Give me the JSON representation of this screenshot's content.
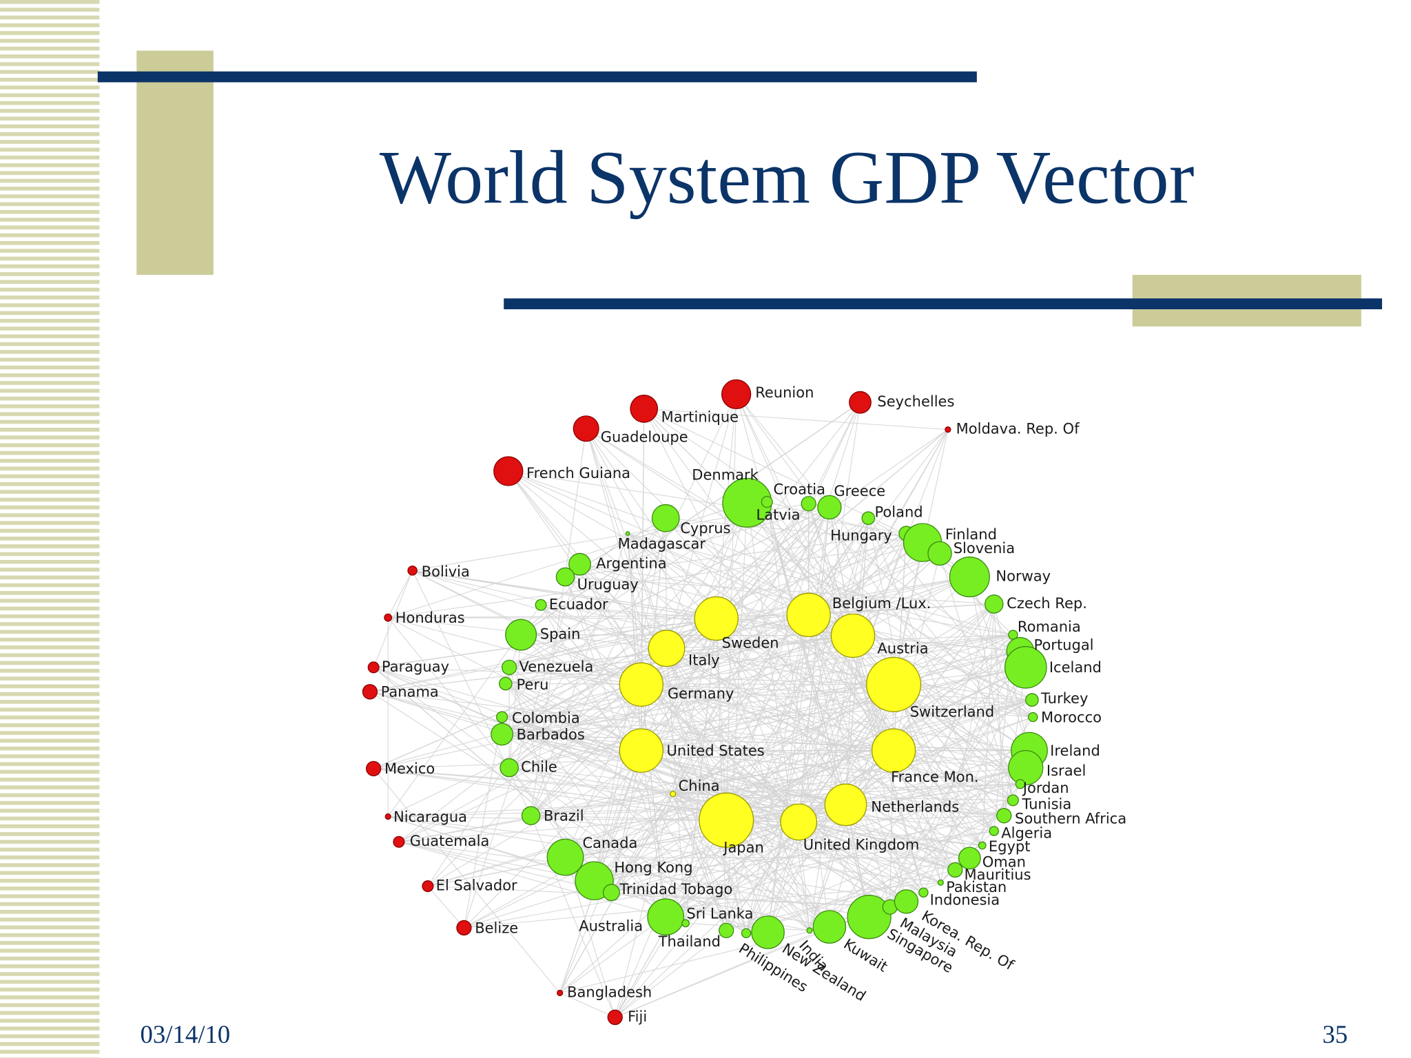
{
  "header": {
    "title": "World System GDP Vector"
  },
  "network": {
    "nodes": [
      {
        "label": "Reunion"
      },
      {
        "label": "Martinique"
      },
      {
        "label": "Guadeloupe"
      },
      {
        "label": "Seychelles"
      },
      {
        "label": "Moldava. Rep. Of"
      },
      {
        "label": "French Guiana"
      },
      {
        "label": "Bolivia"
      },
      {
        "label": "Honduras"
      },
      {
        "label": "Paraguay"
      },
      {
        "label": "Panama"
      },
      {
        "label": "Mexico"
      },
      {
        "label": "Nicaragua"
      },
      {
        "label": "Guatemala"
      },
      {
        "label": "El Salvador"
      },
      {
        "label": "Belize"
      },
      {
        "label": "Bangladesh"
      },
      {
        "label": "Fiji"
      },
      {
        "label": "Sweden"
      },
      {
        "label": "Belgium /Lux."
      },
      {
        "label": "Austria"
      },
      {
        "label": "Italy"
      },
      {
        "label": "Germany"
      },
      {
        "label": "Switzerland"
      },
      {
        "label": "United States"
      },
      {
        "label": "France Mon."
      },
      {
        "label": "Netherlands"
      },
      {
        "label": "Japan"
      },
      {
        "label": "United Kingdom"
      },
      {
        "label": "China"
      },
      {
        "label": "Denmark"
      },
      {
        "label": "Latvia"
      },
      {
        "label": "Croatia"
      },
      {
        "label": "Greece"
      },
      {
        "label": "Poland"
      },
      {
        "label": "Cyprus"
      },
      {
        "label": "Madagascar"
      },
      {
        "label": "Hungary"
      },
      {
        "label": "Finland"
      },
      {
        "label": "Slovenia"
      },
      {
        "label": "Norway"
      },
      {
        "label": "Czech Rep."
      },
      {
        "label": "Argentina"
      },
      {
        "label": "Uruguay"
      },
      {
        "label": "Ecuador"
      },
      {
        "label": "Spain"
      },
      {
        "label": "Romania"
      },
      {
        "label": "Portugal"
      },
      {
        "label": "Iceland"
      },
      {
        "label": "Venezuela"
      },
      {
        "label": "Peru"
      },
      {
        "label": "Turkey"
      },
      {
        "label": "Morocco"
      },
      {
        "label": "Colombia"
      },
      {
        "label": "Barbados"
      },
      {
        "label": "Ireland"
      },
      {
        "label": "Israel"
      },
      {
        "label": "Jordan"
      },
      {
        "label": "Chile"
      },
      {
        "label": "Tunisia"
      },
      {
        "label": "Southern Africa"
      },
      {
        "label": "Brazil"
      },
      {
        "label": "Algeria"
      },
      {
        "label": "Egypt"
      },
      {
        "label": "Oman"
      },
      {
        "label": "Mauritius"
      },
      {
        "label": "Pakistan"
      },
      {
        "label": "Indonesia"
      },
      {
        "label": "Canada"
      },
      {
        "label": "Hong Kong"
      },
      {
        "label": "Trinidad Tobago"
      },
      {
        "label": "Sri Lanka"
      },
      {
        "label": "Australia"
      },
      {
        "label": "Thailand"
      },
      {
        "label": "Philippines"
      },
      {
        "label": "New Zealand"
      },
      {
        "label": "India"
      },
      {
        "label": "Kuwait"
      },
      {
        "label": "Singapore"
      },
      {
        "label": "Malaysia"
      },
      {
        "label": "Korea. Rep. Of"
      }
    ]
  },
  "footer": {
    "date": "03/14/10",
    "page": "35"
  }
}
